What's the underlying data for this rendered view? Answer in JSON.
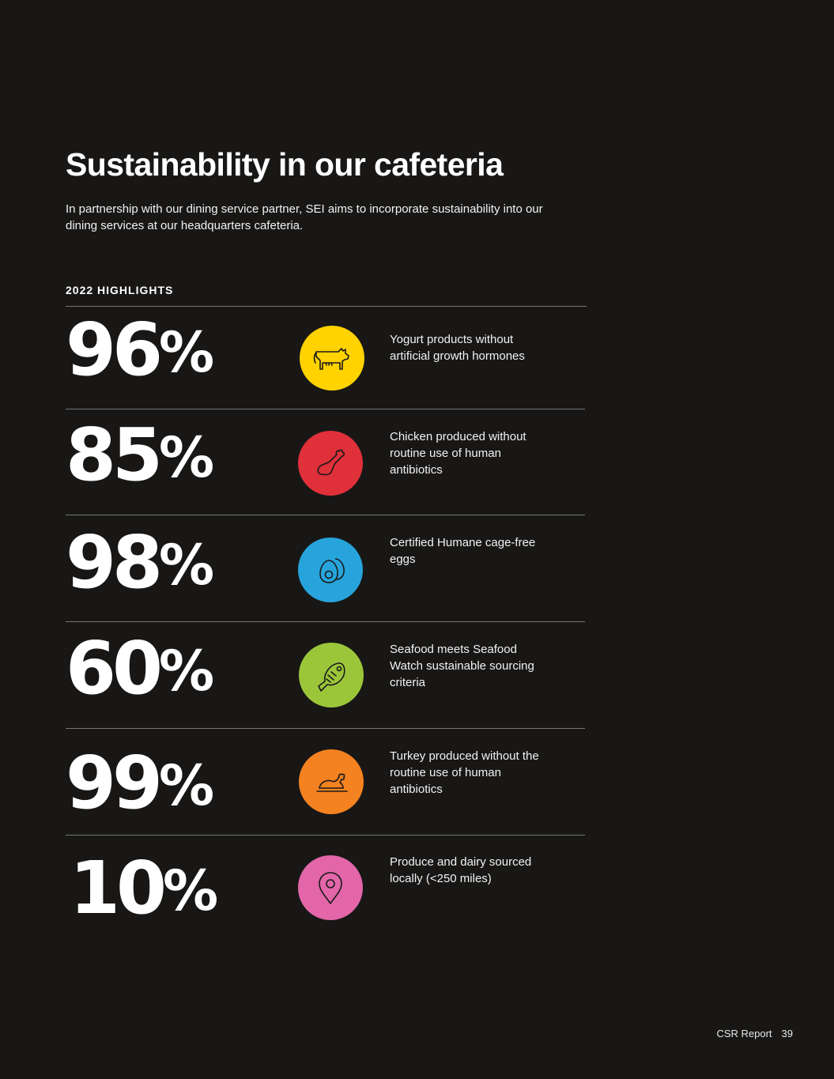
{
  "title": "Sustainability in our cafeteria",
  "intro": "In partnership with our dining service partner, SEI aims to incorporate sustainability into our dining services at our headquarters cafeteria.",
  "section_label": "2022 HIGHLIGHTS",
  "highlights": [
    {
      "value": "96",
      "unit": "%",
      "icon": "cow-icon",
      "color": "#FFD200",
      "description": "Yogurt products without artificial growth hormones"
    },
    {
      "value": "85",
      "unit": "%",
      "icon": "chicken-leg-icon",
      "color": "#E0303A",
      "description": "Chicken produced without routine use of human antibiotics"
    },
    {
      "value": "98",
      "unit": "%",
      "icon": "eggs-icon",
      "color": "#27A4DC",
      "description": "Certified Humane cage-free eggs"
    },
    {
      "value": "60",
      "unit": "%",
      "icon": "fish-icon",
      "color": "#9BC63A",
      "description": "Seafood meets Seafood Watch sustainable sourcing criteria"
    },
    {
      "value": "99",
      "unit": "%",
      "icon": "roast-turkey-icon",
      "color": "#F58220",
      "description": "Turkey produced without the routine use of human antibiotics"
    },
    {
      "value": "10",
      "unit": "%",
      "icon": "location-pin-icon",
      "color": "#E266A8",
      "description": "Produce and dairy sourced locally (<250 miles)"
    }
  ],
  "footer": {
    "report_name": "CSR Report",
    "page_number": "39"
  }
}
